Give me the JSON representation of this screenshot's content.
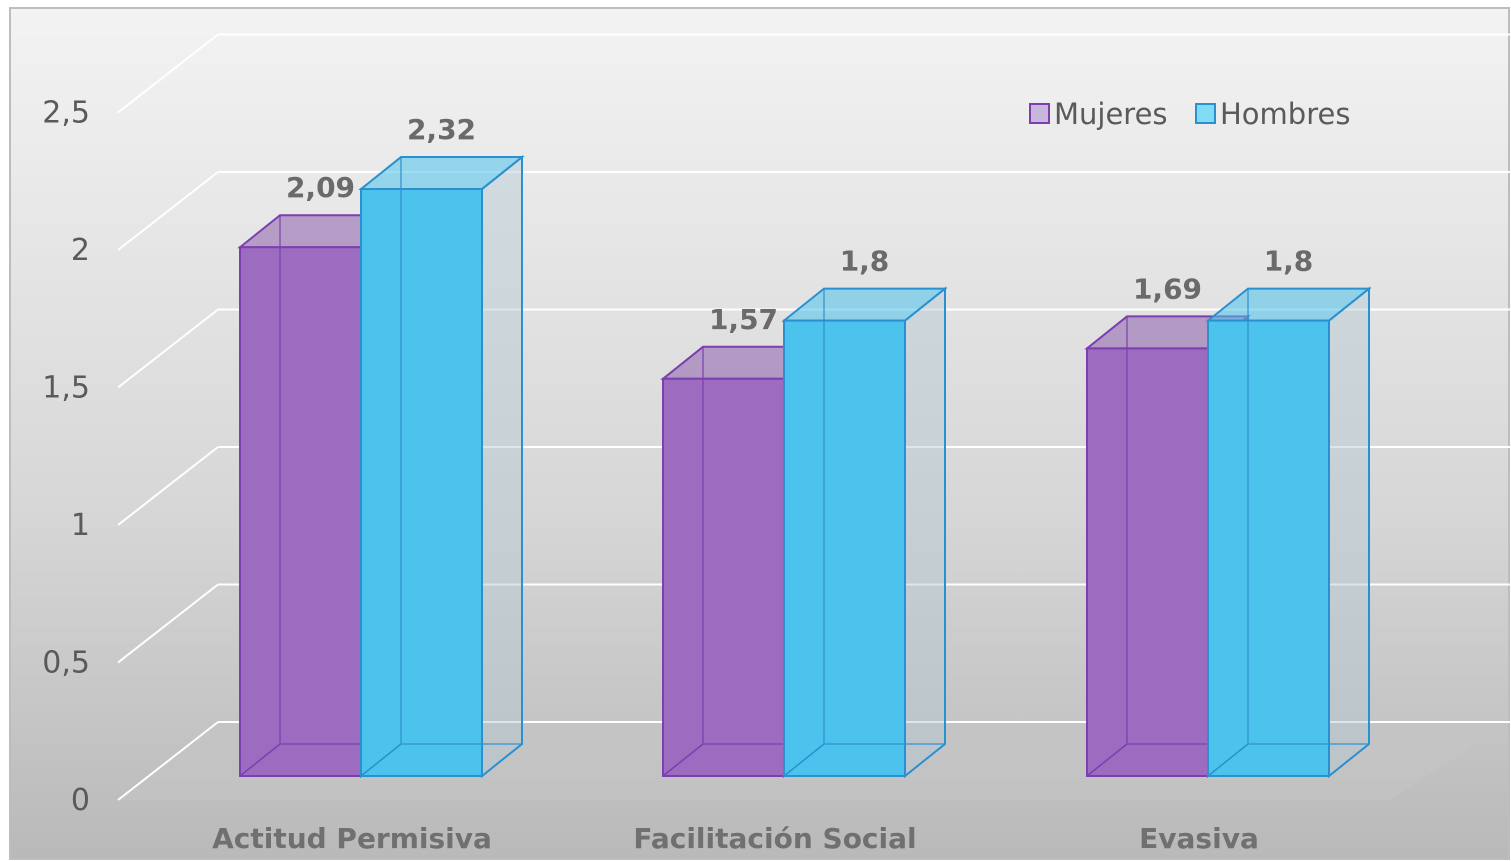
{
  "chart_data": {
    "type": "bar",
    "style": "3d-clustered-column",
    "title": "",
    "xlabel": "",
    "ylabel": "",
    "categories": [
      "Actitud Permisiva",
      "Facilitación Social",
      "Evasiva"
    ],
    "series": [
      {
        "name": "Mujeres",
        "values": [
          2.09,
          1.57,
          1.69
        ],
        "labels": [
          "2,09",
          "1,57",
          "1,69"
        ],
        "color": "#9b6cc0",
        "edge": "#7b3fb0"
      },
      {
        "name": "Hombres",
        "values": [
          2.32,
          1.8,
          1.8
        ],
        "labels": [
          "2,32",
          "1,8",
          "1,8"
        ],
        "color": "#4cc3ec",
        "edge": "#2a90d0"
      }
    ],
    "ylim": [
      0,
      2.5
    ],
    "yticks": [
      0,
      0.5,
      1,
      1.5,
      2,
      2.5
    ],
    "ytick_labels": [
      "0",
      "0,5",
      "1",
      "1,5",
      "2",
      "2,5"
    ],
    "grid": true,
    "legend_position": "top-right"
  }
}
